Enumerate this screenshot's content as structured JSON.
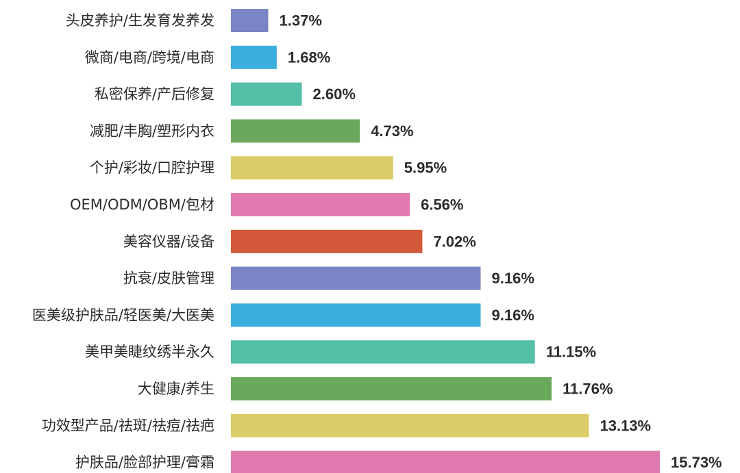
{
  "chart_data": {
    "type": "bar",
    "orientation": "horizontal",
    "value_suffix": "%",
    "categories": [
      "头皮养护/生发育发养发",
      "微商/电商/跨境/电商",
      "私密保养/产后修复",
      "减肥/丰胸/塑形内衣",
      "个护/彩妆/口腔护理",
      "OEM/ODM/OBM/包材",
      "美容仪器/设备",
      "抗衰/皮肤管理",
      "医美级护肤品/轻医美/大医美",
      "美甲美睫纹绣半永久",
      "大健康/养生",
      "功效型产品/祛斑/祛痘/祛疤",
      "护肤品/脸部护理/膏霜"
    ],
    "values": [
      1.37,
      1.68,
      2.6,
      4.73,
      5.95,
      6.56,
      7.02,
      9.16,
      9.16,
      11.15,
      11.76,
      13.13,
      15.73
    ],
    "value_labels": [
      "1.37%",
      "1.68%",
      "2.60%",
      "4.73%",
      "5.95%",
      "6.56%",
      "7.02%",
      "9.16%",
      "9.16%",
      "11.15%",
      "11.76%",
      "13.13%",
      "15.73%"
    ],
    "colors": [
      "#7b84c4",
      "#3aaedc",
      "#52bfa6",
      "#6aa85b",
      "#dccc67",
      "#e07aaf",
      "#d4583a",
      "#7b84c4",
      "#3aaedc",
      "#52bfa6",
      "#6aa85b",
      "#dccc67",
      "#e07aaf"
    ],
    "xlim": [
      0,
      15.73
    ],
    "title": "",
    "xlabel": "",
    "ylabel": "",
    "grid": false,
    "legend": "none"
  }
}
